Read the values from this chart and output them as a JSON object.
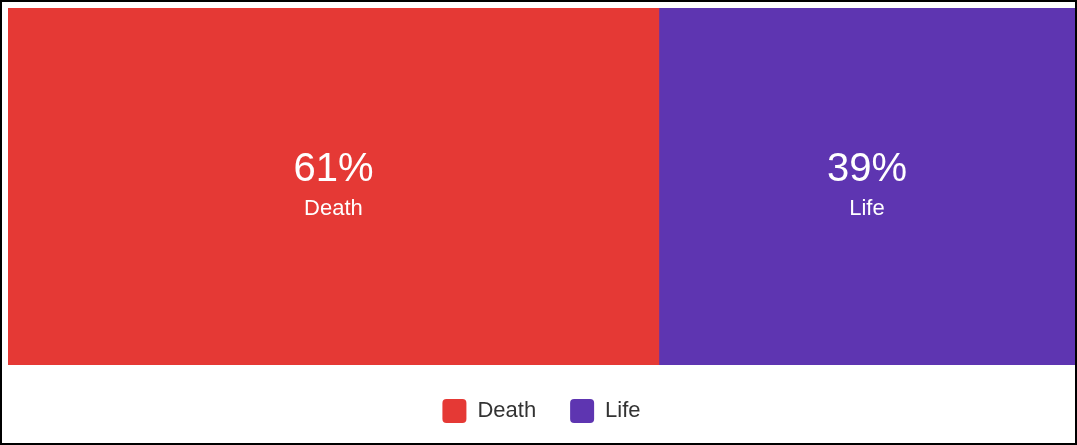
{
  "chart_data": {
    "type": "bar",
    "orientation": "horizontal",
    "stacked": true,
    "categories": [
      null
    ],
    "xlim": [
      0,
      100
    ],
    "tick_labels": false,
    "legend": "bottom",
    "series": [
      {
        "name": "Death",
        "color": "#e53935",
        "values": [
          61
        ],
        "value_labels": [
          "61%"
        ]
      },
      {
        "name": "Life",
        "color": "#5e35b1",
        "values": [
          39
        ],
        "value_labels": [
          "39%"
        ]
      }
    ]
  }
}
